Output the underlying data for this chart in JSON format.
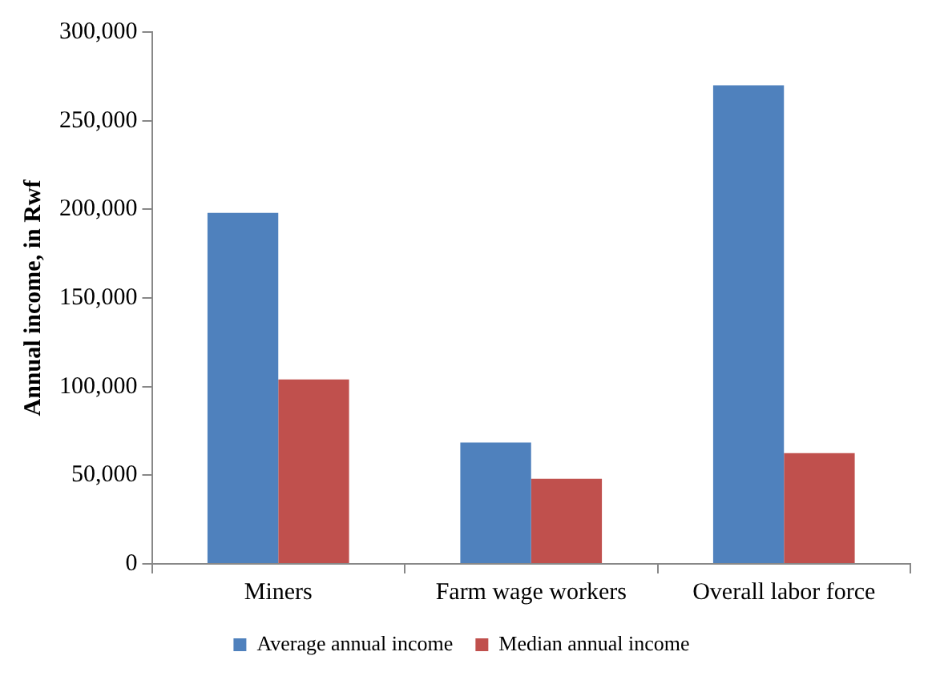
{
  "chart_data": {
    "type": "bar",
    "ylabel": "Annual income, in Rwf",
    "categories": [
      "Miners",
      "Farm wage workers",
      "Overall labor force"
    ],
    "series": [
      {
        "name": "Average annual income",
        "color": "#4f81bd",
        "values": [
          198000,
          68500,
          270000
        ]
      },
      {
        "name": "Median annual income",
        "color": "#c0504d",
        "values": [
          104000,
          48000,
          62500
        ]
      }
    ],
    "ylim": [
      0,
      300000
    ],
    "yticks": [
      {
        "value": 0,
        "label": "0"
      },
      {
        "value": 50000,
        "label": "50,000"
      },
      {
        "value": 100000,
        "label": "100,000"
      },
      {
        "value": 150000,
        "label": "150,000"
      },
      {
        "value": 200000,
        "label": "200,000"
      },
      {
        "value": 250000,
        "label": "250,000"
      },
      {
        "value": 300000,
        "label": "300,000"
      }
    ],
    "grid": false,
    "legend": "bottom"
  }
}
